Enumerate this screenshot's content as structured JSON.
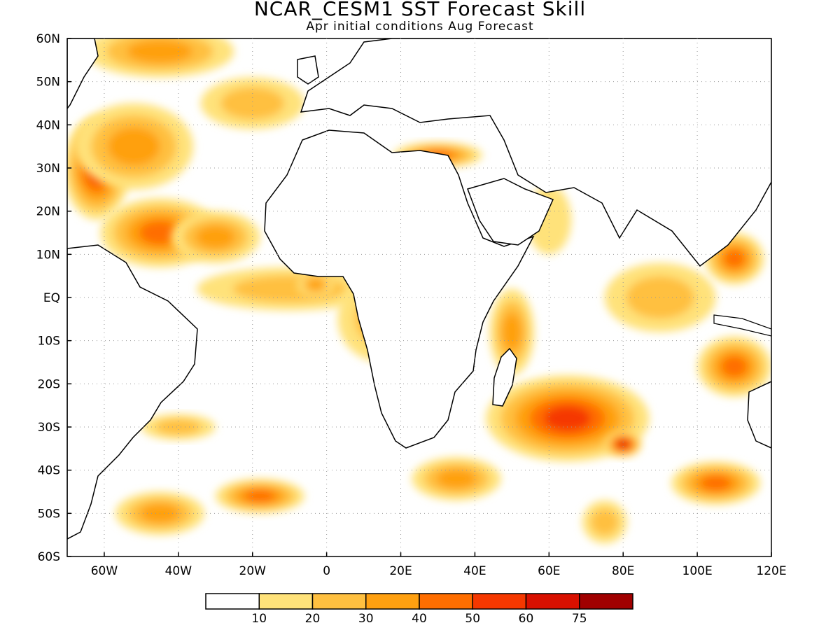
{
  "title": "NCAR_CESM1 SST Forecast Skill",
  "subtitle": "Apr initial conditions  Aug Forecast",
  "lat_labels": [
    "60N",
    "50N",
    "40N",
    "30N",
    "20N",
    "10N",
    "EQ",
    "10S",
    "20S",
    "30S",
    "40S",
    "50S",
    "60S"
  ],
  "lon_labels": [
    "60W",
    "40W",
    "20W",
    "0",
    "20E",
    "40E",
    "60E",
    "80E",
    "100E",
    "120E"
  ],
  "colorbar": {
    "labels": [
      "10",
      "20",
      "30",
      "40",
      "50",
      "60",
      "75"
    ],
    "colors": [
      "#ffffff",
      "#ffe27a",
      "#ffc040",
      "#ffa010",
      "#ff6e00",
      "#f53800",
      "#d81000",
      "#a00000"
    ]
  },
  "map_extent": {
    "lon": [
      -70,
      120
    ],
    "lat": [
      -60,
      60
    ]
  },
  "skill_regions": [
    {
      "lon": -62,
      "lat": 30,
      "rx": 9,
      "ry": 12,
      "level": 5
    },
    {
      "lon": -52,
      "lat": 35,
      "rx": 16,
      "ry": 10,
      "level": 3
    },
    {
      "lon": -45,
      "lat": 15,
      "rx": 16,
      "ry": 8,
      "level": 4
    },
    {
      "lon": -30,
      "lat": 14,
      "rx": 12,
      "ry": 6,
      "level": 3
    },
    {
      "lon": -45,
      "lat": 57,
      "rx": 20,
      "ry": 6,
      "level": 3
    },
    {
      "lon": -20,
      "lat": 45,
      "rx": 14,
      "ry": 6,
      "level": 2
    },
    {
      "lon": -10,
      "lat": 2,
      "rx": 25,
      "ry": 5,
      "level": 2
    },
    {
      "lon": -3,
      "lat": 3,
      "rx": 5,
      "ry": 3,
      "level": 3
    },
    {
      "lon": 15,
      "lat": -5,
      "rx": 12,
      "ry": 10,
      "level": 2
    },
    {
      "lon": 65,
      "lat": -28,
      "rx": 22,
      "ry": 10,
      "level": 5
    },
    {
      "lon": 80,
      "lat": -34,
      "rx": 5,
      "ry": 3,
      "level": 6
    },
    {
      "lon": 110,
      "lat": -16,
      "rx": 10,
      "ry": 7,
      "level": 4
    },
    {
      "lon": 105,
      "lat": -43,
      "rx": 12,
      "ry": 5,
      "level": 4
    },
    {
      "lon": 110,
      "lat": 9,
      "rx": 8,
      "ry": 6,
      "level": 4
    },
    {
      "lon": 50,
      "lat": -8,
      "rx": 6,
      "ry": 10,
      "level": 3
    },
    {
      "lon": 90,
      "lat": 0,
      "rx": 15,
      "ry": 8,
      "level": 2
    },
    {
      "lon": 30,
      "lat": 33,
      "rx": 12,
      "ry": 3,
      "level": 4
    },
    {
      "lon": 35,
      "lat": -42,
      "rx": 12,
      "ry": 5,
      "level": 3
    },
    {
      "lon": -18,
      "lat": -46,
      "rx": 12,
      "ry": 4,
      "level": 4
    },
    {
      "lon": -45,
      "lat": -50,
      "rx": 12,
      "ry": 5,
      "level": 3
    },
    {
      "lon": -40,
      "lat": -30,
      "rx": 10,
      "ry": 3,
      "level": 2
    },
    {
      "lon": 75,
      "lat": -52,
      "rx": 6,
      "ry": 5,
      "level": 2
    },
    {
      "lon": 60,
      "lat": 18,
      "rx": 6,
      "ry": 8,
      "level": 1
    }
  ]
}
